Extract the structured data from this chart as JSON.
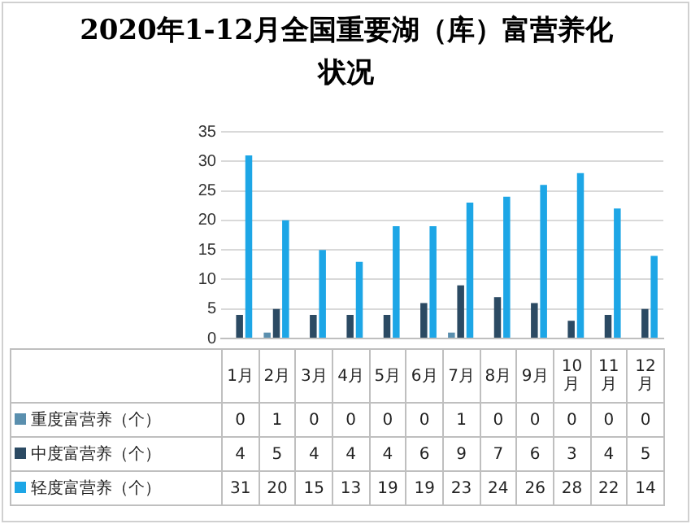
{
  "chart_data": {
    "type": "bar",
    "title": "2020年1-12月全国重要湖（库）富营养化状况",
    "categories": [
      "1月",
      "2月",
      "3月",
      "4月",
      "5月",
      "6月",
      "7月",
      "8月",
      "9月",
      "10月",
      "11月",
      "12月"
    ],
    "series": [
      {
        "name": "重度富营养（个）",
        "color": "#5a8fae",
        "values": [
          0,
          1,
          0,
          0,
          0,
          0,
          1,
          0,
          0,
          0,
          0,
          0
        ]
      },
      {
        "name": "中度富营养（个）",
        "color": "#2b4a63",
        "values": [
          4,
          5,
          4,
          4,
          4,
          6,
          9,
          7,
          6,
          3,
          4,
          5
        ]
      },
      {
        "name": "轻度富营养（个）",
        "color": "#1da6e6",
        "values": [
          31,
          20,
          15,
          13,
          19,
          19,
          23,
          24,
          26,
          28,
          22,
          14
        ]
      }
    ],
    "ylim": [
      0,
      35
    ],
    "yticks": [
      0,
      5,
      10,
      15,
      20,
      25,
      30,
      35
    ],
    "grid": "y",
    "legend": "bottom",
    "data_labels": true
  }
}
